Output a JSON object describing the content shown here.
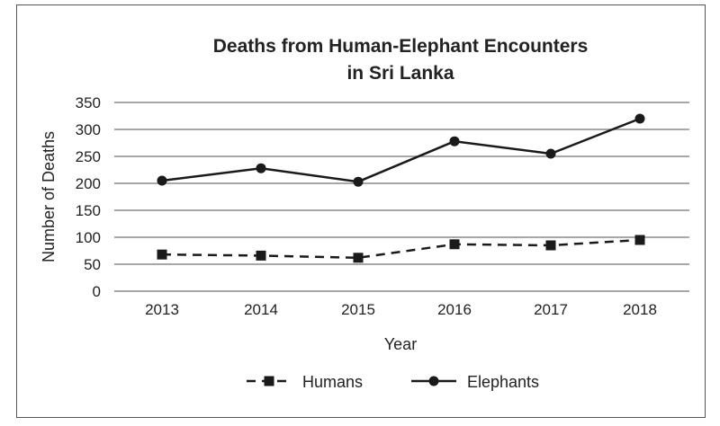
{
  "chart_data": {
    "type": "line",
    "title": [
      "Deaths from Human-Elephant Encounters",
      "in Sri Lanka"
    ],
    "xlabel": "Year",
    "ylabel": "Number of Deaths",
    "categories": [
      "2013",
      "2014",
      "2015",
      "2016",
      "2017",
      "2018"
    ],
    "yticks": [
      0,
      50,
      100,
      150,
      200,
      250,
      300,
      350
    ],
    "ylim": [
      0,
      350
    ],
    "grid": true,
    "legend_position": "bottom",
    "series": [
      {
        "name": "Humans",
        "style": "dashed",
        "marker": "square",
        "values": [
          68,
          66,
          62,
          87,
          85,
          95
        ]
      },
      {
        "name": "Elephants",
        "style": "solid",
        "marker": "circle",
        "values": [
          205,
          228,
          203,
          278,
          255,
          320
        ]
      }
    ],
    "colors": {
      "line": "#1a1a1a",
      "grid": "#8a8a8a"
    }
  }
}
